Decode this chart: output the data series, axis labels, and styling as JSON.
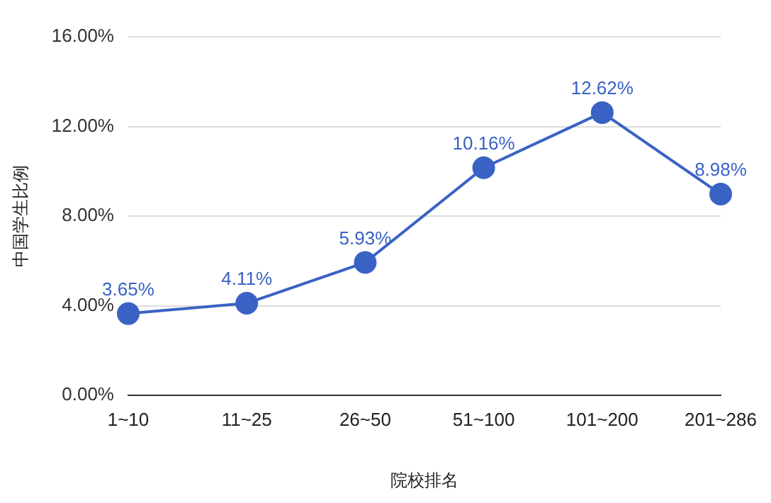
{
  "chart_data": {
    "type": "line",
    "xlabel": "院校排名",
    "ylabel": "中国学生比例",
    "categories": [
      "1~10",
      "11~25",
      "26~50",
      "51~100",
      "101~200",
      "201~286"
    ],
    "series": [
      {
        "color": "#3a62c4",
        "values": [
          3.65,
          4.11,
          5.93,
          10.16,
          12.62,
          8.98
        ],
        "value_labels": [
          "3.65%",
          "4.11%",
          "5.93%",
          "10.16%",
          "12.62%",
          "8.98%"
        ]
      }
    ],
    "ylim": [
      0,
      16
    ],
    "yticks": [
      {
        "value": 0,
        "label": "0.00%"
      },
      {
        "value": 4,
        "label": "4.00%"
      },
      {
        "value": 8,
        "label": "8.00%"
      },
      {
        "value": 12,
        "label": "12.00%"
      },
      {
        "value": 16,
        "label": "16.00%"
      }
    ],
    "grid": "y",
    "legend": false,
    "marker": "circle",
    "line_style": "solid"
  }
}
